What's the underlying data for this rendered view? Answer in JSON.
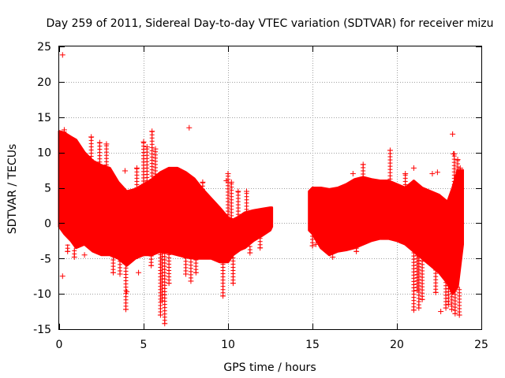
{
  "chart_data": {
    "type": "scatter",
    "title": "Day 259 of 2011, Sidereal Day-to-day VTEC variation (SDTVAR) for receiver mizu",
    "xlabel": "GPS time / hours",
    "ylabel": "SDTVAR / TECUs",
    "xlim": [
      0,
      25
    ],
    "ylim": [
      -15,
      25
    ],
    "xticks": [
      0,
      5,
      10,
      15,
      20,
      25
    ],
    "yticks": [
      -15,
      -10,
      -5,
      0,
      5,
      10,
      15,
      20,
      25
    ],
    "grid": true,
    "marker": "+",
    "series_color": "#ff0000",
    "envelope": {
      "segments": [
        {
          "x": [
            0.0,
            0.3,
            0.7,
            1.0,
            1.5,
            2.0,
            2.5,
            3.0,
            3.5,
            4.0,
            4.5,
            5.0,
            5.5,
            6.0,
            6.5,
            7.0,
            7.5,
            8.0,
            8.5,
            9.0,
            9.5,
            10.0,
            10.3,
            10.7,
            11.0,
            11.5,
            12.0,
            12.5,
            12.6
          ],
          "upper": [
            13.0,
            12.8,
            12.2,
            11.8,
            10.0,
            8.8,
            8.2,
            7.8,
            5.8,
            4.5,
            4.8,
            5.5,
            6.2,
            7.2,
            7.8,
            7.8,
            7.2,
            6.3,
            4.8,
            3.5,
            2.2,
            0.8,
            0.5,
            1.0,
            1.5,
            1.8,
            2.0,
            2.2,
            2.2
          ],
          "lower": [
            -0.5,
            -1.5,
            -2.5,
            -3.5,
            -3.0,
            -4.0,
            -4.5,
            -4.5,
            -5.0,
            -6.0,
            -5.0,
            -4.5,
            -4.5,
            -4.0,
            -4.2,
            -4.5,
            -4.8,
            -5.0,
            -5.0,
            -5.0,
            -5.5,
            -5.5,
            -4.5,
            -3.8,
            -3.5,
            -2.5,
            -1.8,
            -1.0,
            -0.5
          ]
        },
        {
          "x": [
            14.8,
            15.0,
            15.5,
            16.0,
            16.5,
            17.0,
            17.5,
            18.0,
            18.5,
            19.0,
            19.5,
            20.0,
            20.5,
            21.0,
            21.5,
            22.0,
            22.5,
            23.0,
            23.3,
            23.6,
            23.9
          ],
          "upper": [
            4.5,
            5.0,
            5.0,
            4.8,
            5.0,
            5.5,
            6.2,
            6.5,
            6.2,
            6.0,
            6.0,
            5.5,
            5.0,
            6.0,
            5.0,
            4.5,
            4.0,
            3.0,
            5.0,
            7.5,
            7.5
          ],
          "lower": [
            -1.0,
            -1.5,
            -3.5,
            -4.5,
            -4.0,
            -3.8,
            -3.5,
            -3.0,
            -2.5,
            -2.2,
            -2.2,
            -2.5,
            -3.0,
            -4.0,
            -5.0,
            -6.0,
            -7.0,
            -8.5,
            -10.0,
            -9.0,
            -3.0
          ]
        }
      ]
    },
    "spikes": [
      {
        "x": 0.3,
        "y0": 12.0,
        "y1": 13.2
      },
      {
        "x": 0.5,
        "y0": -3.0,
        "y1": -4.0
      },
      {
        "x": 0.9,
        "y0": -3.5,
        "y1": -4.8
      },
      {
        "x": 1.9,
        "y0": 9.0,
        "y1": 12.2
      },
      {
        "x": 2.4,
        "y0": 8.2,
        "y1": 11.4
      },
      {
        "x": 2.8,
        "y0": 7.8,
        "y1": 11.2
      },
      {
        "x": 3.2,
        "y0": -4.5,
        "y1": -7.0
      },
      {
        "x": 3.6,
        "y0": -5.0,
        "y1": -7.2
      },
      {
        "x": 3.95,
        "y0": -6.0,
        "y1": -12.2
      },
      {
        "x": 4.6,
        "y0": 5.0,
        "y1": 7.8
      },
      {
        "x": 5.0,
        "y0": 5.5,
        "y1": 11.5
      },
      {
        "x": 5.2,
        "y0": 6.0,
        "y1": 10.8
      },
      {
        "x": 5.45,
        "y0": -4.5,
        "y1": -6.0
      },
      {
        "x": 5.5,
        "y0": 6.2,
        "y1": 13.0
      },
      {
        "x": 5.7,
        "y0": 6.5,
        "y1": 10.5
      },
      {
        "x": 6.0,
        "y0": -4.0,
        "y1": -13.0
      },
      {
        "x": 6.1,
        "y0": -4.0,
        "y1": -11.0
      },
      {
        "x": 6.25,
        "y0": -4.0,
        "y1": -14.2
      },
      {
        "x": 6.5,
        "y0": -4.2,
        "y1": -8.5
      },
      {
        "x": 7.5,
        "y0": -4.8,
        "y1": -7.2
      },
      {
        "x": 7.8,
        "y0": -5.0,
        "y1": -8.2
      },
      {
        "x": 8.1,
        "y0": -5.0,
        "y1": -7.0
      },
      {
        "x": 8.5,
        "y0": 4.8,
        "y1": 5.8
      },
      {
        "x": 9.7,
        "y0": -5.5,
        "y1": -10.3
      },
      {
        "x": 10.0,
        "y0": 0.8,
        "y1": 7.0
      },
      {
        "x": 10.2,
        "y0": 0.6,
        "y1": 5.8
      },
      {
        "x": 10.3,
        "y0": -4.5,
        "y1": -8.5
      },
      {
        "x": 10.6,
        "y0": 0.8,
        "y1": 4.5
      },
      {
        "x": 11.1,
        "y0": 1.5,
        "y1": 4.5
      },
      {
        "x": 11.3,
        "y0": -3.2,
        "y1": -4.2
      },
      {
        "x": 11.9,
        "y0": -1.8,
        "y1": -3.5
      },
      {
        "x": 15.0,
        "y0": -1.5,
        "y1": -3.2
      },
      {
        "x": 17.6,
        "y0": -3.5,
        "y1": -4.0
      },
      {
        "x": 18.0,
        "y0": 6.5,
        "y1": 8.3
      },
      {
        "x": 19.6,
        "y0": 5.8,
        "y1": 10.3
      },
      {
        "x": 20.5,
        "y0": 5.0,
        "y1": 7.0
      },
      {
        "x": 21.0,
        "y0": -4.0,
        "y1": -12.3
      },
      {
        "x": 21.2,
        "y0": -4.2,
        "y1": -9.5
      },
      {
        "x": 21.3,
        "y0": -4.5,
        "y1": -12.0
      },
      {
        "x": 21.5,
        "y0": -5.0,
        "y1": -10.8
      },
      {
        "x": 22.3,
        "y0": -6.5,
        "y1": -9.8
      },
      {
        "x": 22.9,
        "y0": -7.5,
        "y1": -12.0
      },
      {
        "x": 23.05,
        "y0": -8.0,
        "y1": -11.5
      },
      {
        "x": 23.25,
        "y0": -9.0,
        "y1": -12.2
      },
      {
        "x": 23.4,
        "y0": 5.0,
        "y1": 9.8
      },
      {
        "x": 23.45,
        "y0": -9.5,
        "y1": -12.8
      },
      {
        "x": 23.6,
        "y0": 7.5,
        "y1": 9.0
      },
      {
        "x": 23.7,
        "y0": -9.0,
        "y1": -13.0
      },
      {
        "x": 23.75,
        "y0": 7.0,
        "y1": 7.8
      }
    ],
    "outliers": [
      {
        "x": 0.2,
        "y": 23.8
      },
      {
        "x": 0.2,
        "y": -7.5
      },
      {
        "x": 1.5,
        "y": -4.5
      },
      {
        "x": 3.9,
        "y": 7.4
      },
      {
        "x": 4.0,
        "y": -9.7
      },
      {
        "x": 4.7,
        "y": -7.0
      },
      {
        "x": 7.7,
        "y": 13.5
      },
      {
        "x": 9.9,
        "y": 6.0
      },
      {
        "x": 15.2,
        "y": -3.0
      },
      {
        "x": 16.2,
        "y": -4.8
      },
      {
        "x": 17.4,
        "y": 7.0
      },
      {
        "x": 21.0,
        "y": 7.8
      },
      {
        "x": 22.1,
        "y": 7.0
      },
      {
        "x": 22.4,
        "y": 7.2
      },
      {
        "x": 22.6,
        "y": -12.5
      },
      {
        "x": 23.3,
        "y": 12.6
      },
      {
        "x": 23.35,
        "y": 9.8
      }
    ]
  }
}
